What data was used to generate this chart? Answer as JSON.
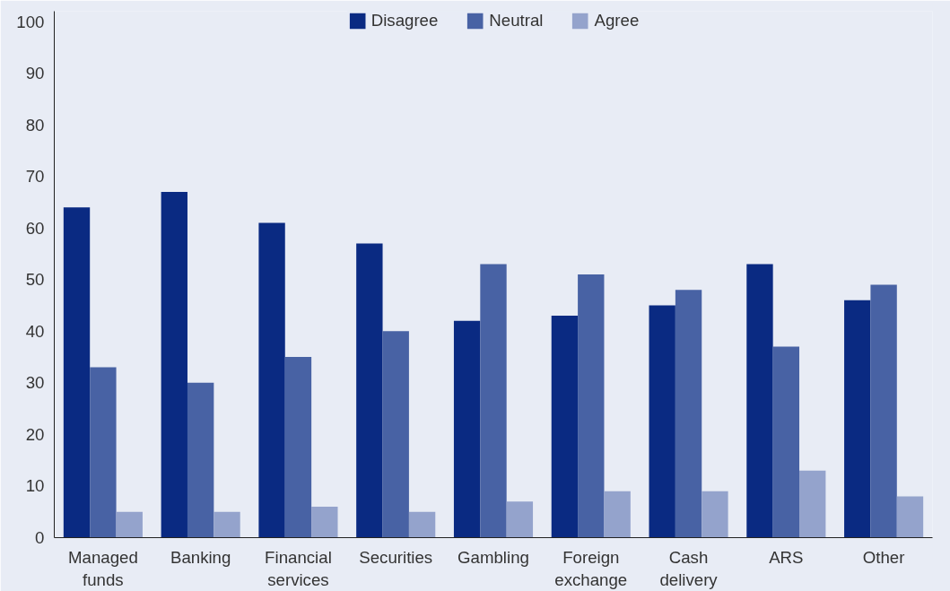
{
  "chart_data": {
    "type": "bar",
    "categories": [
      "Managed funds",
      "Banking",
      "Financial services",
      "Securities",
      "Gambling",
      "Foreign exchange",
      "Cash delivery",
      "ARS",
      "Other"
    ],
    "series": [
      {
        "name": "Disagree",
        "color": "#0a2a82",
        "values": [
          64,
          67,
          61,
          57,
          42,
          43,
          45,
          53,
          46
        ]
      },
      {
        "name": "Neutral",
        "color": "#4862a4",
        "values": [
          33,
          30,
          35,
          40,
          53,
          51,
          48,
          37,
          49
        ]
      },
      {
        "name": "Agree",
        "color": "#94a3cc",
        "values": [
          5,
          5,
          6,
          5,
          7,
          9,
          9,
          13,
          8
        ]
      }
    ],
    "ylim": [
      0,
      102
    ],
    "yticks": [
      0,
      10,
      20,
      30,
      40,
      50,
      60,
      70,
      80,
      90,
      100
    ],
    "grid": false,
    "legend": "top"
  }
}
